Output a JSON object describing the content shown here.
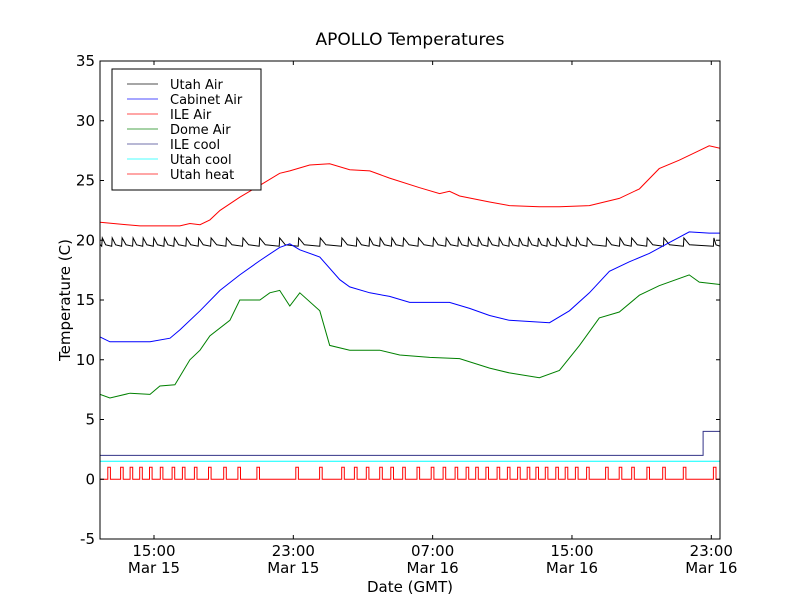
{
  "chart_data": {
    "type": "line",
    "title": "APOLLO Temperatures",
    "xlabel": "Date (GMT)",
    "ylabel": "Temperature (C)",
    "x_units": "hours since Mar 15 00:00 GMT",
    "xlim": [
      11.9,
      47.5
    ],
    "ylim": [
      -5,
      35
    ],
    "grid": false,
    "legend_position": "top-left",
    "yticks": [
      -5,
      0,
      5,
      10,
      15,
      20,
      25,
      30,
      35
    ],
    "ytick_labels": [
      "-5",
      "0",
      "5",
      "10",
      "15",
      "20",
      "25",
      "30",
      "35"
    ],
    "xticks": [
      {
        "x": 15,
        "time": "15:00",
        "date": "Mar 15"
      },
      {
        "x": 23,
        "time": "23:00",
        "date": "Mar 15"
      },
      {
        "x": 31,
        "time": "07:00",
        "date": "Mar 16"
      },
      {
        "x": 39,
        "time": "15:00",
        "date": "Mar 16"
      },
      {
        "x": 47,
        "time": "23:00",
        "date": "Mar 16"
      }
    ],
    "series": [
      {
        "name": "Utah Air",
        "color": "#000000",
        "kind": "sawtooth",
        "low": 19.5,
        "high": 20.2,
        "teeth": [
          12.0,
          12.57,
          13.14,
          13.77,
          14.35,
          14.96,
          15.57,
          16.14,
          16.83,
          17.54,
          18.25,
          19.13,
          20.08,
          21.04,
          22.19,
          23.28,
          24.52,
          25.76,
          26.62,
          27.35,
          27.96,
          28.63,
          29.3,
          30.16,
          31.02,
          31.75,
          32.45,
          33.03,
          33.6,
          34.17,
          34.8,
          35.38,
          35.95,
          36.47,
          37.04,
          37.56,
          38.09,
          38.7,
          39.24,
          39.85,
          40.96,
          41.73,
          42.4,
          43.29,
          44.25,
          45.4,
          47.12
        ]
      },
      {
        "name": "Cabinet Air",
        "color": "#0000ff",
        "kind": "line",
        "points": [
          [
            11.9,
            11.9
          ],
          [
            12.47,
            11.5
          ],
          [
            14.77,
            11.5
          ],
          [
            15.92,
            11.8
          ],
          [
            16.49,
            12.5
          ],
          [
            17.64,
            14.1
          ],
          [
            18.79,
            15.8
          ],
          [
            19.93,
            17.1
          ],
          [
            21.08,
            18.3
          ],
          [
            22.22,
            19.4
          ],
          [
            22.8,
            19.7
          ],
          [
            23.37,
            19.2
          ],
          [
            24.52,
            18.6
          ],
          [
            25.67,
            16.7
          ],
          [
            26.24,
            16.1
          ],
          [
            27.39,
            15.6
          ],
          [
            28.53,
            15.3
          ],
          [
            29.68,
            14.8
          ],
          [
            31.97,
            14.8
          ],
          [
            33.12,
            14.3
          ],
          [
            34.27,
            13.7
          ],
          [
            35.41,
            13.3
          ],
          [
            37.71,
            13.1
          ],
          [
            38.85,
            14.1
          ],
          [
            40.0,
            15.6
          ],
          [
            41.15,
            17.4
          ],
          [
            42.29,
            18.2
          ],
          [
            43.44,
            18.9
          ],
          [
            44.59,
            19.8
          ],
          [
            45.73,
            20.7
          ],
          [
            46.88,
            20.6
          ],
          [
            47.5,
            20.6
          ]
        ]
      },
      {
        "name": "ILE Air",
        "color": "#ff0000",
        "kind": "line",
        "points": [
          [
            11.9,
            21.5
          ],
          [
            14.19,
            21.2
          ],
          [
            16.49,
            21.2
          ],
          [
            17.06,
            21.4
          ],
          [
            17.64,
            21.3
          ],
          [
            18.21,
            21.7
          ],
          [
            18.79,
            22.5
          ],
          [
            19.93,
            23.6
          ],
          [
            21.08,
            24.6
          ],
          [
            22.22,
            25.6
          ],
          [
            22.8,
            25.8
          ],
          [
            23.94,
            26.3
          ],
          [
            25.09,
            26.4
          ],
          [
            26.24,
            25.9
          ],
          [
            27.39,
            25.8
          ],
          [
            28.53,
            25.2
          ],
          [
            30.25,
            24.4
          ],
          [
            31.4,
            23.9
          ],
          [
            31.97,
            24.1
          ],
          [
            32.55,
            23.7
          ],
          [
            34.27,
            23.2
          ],
          [
            35.41,
            22.9
          ],
          [
            37.13,
            22.8
          ],
          [
            38.28,
            22.8
          ],
          [
            40.0,
            22.9
          ],
          [
            41.72,
            23.5
          ],
          [
            42.87,
            24.3
          ],
          [
            44.01,
            26.0
          ],
          [
            45.16,
            26.7
          ],
          [
            46.31,
            27.5
          ],
          [
            46.88,
            27.9
          ],
          [
            47.5,
            27.7
          ]
        ]
      },
      {
        "name": "Dome Air",
        "color": "#008000",
        "kind": "line",
        "points": [
          [
            11.9,
            7.1
          ],
          [
            12.47,
            6.8
          ],
          [
            13.62,
            7.2
          ],
          [
            14.77,
            7.1
          ],
          [
            15.34,
            7.8
          ],
          [
            16.2,
            7.9
          ],
          [
            17.06,
            10.0
          ],
          [
            17.64,
            10.8
          ],
          [
            18.21,
            12.0
          ],
          [
            19.36,
            13.3
          ],
          [
            19.93,
            15.0
          ],
          [
            21.08,
            15.0
          ],
          [
            21.65,
            15.6
          ],
          [
            22.22,
            15.8
          ],
          [
            22.8,
            14.5
          ],
          [
            23.37,
            15.6
          ],
          [
            24.52,
            14.1
          ],
          [
            25.09,
            11.2
          ],
          [
            26.24,
            10.8
          ],
          [
            27.96,
            10.8
          ],
          [
            29.11,
            10.4
          ],
          [
            30.83,
            10.2
          ],
          [
            32.55,
            10.1
          ],
          [
            34.27,
            9.3
          ],
          [
            35.41,
            8.9
          ],
          [
            37.13,
            8.5
          ],
          [
            38.28,
            9.1
          ],
          [
            39.43,
            11.2
          ],
          [
            40.57,
            13.5
          ],
          [
            41.72,
            14.0
          ],
          [
            42.87,
            15.4
          ],
          [
            44.01,
            16.2
          ],
          [
            45.73,
            17.1
          ],
          [
            46.31,
            16.5
          ],
          [
            47.5,
            16.3
          ]
        ]
      },
      {
        "name": "ILE cool",
        "color": "#333388",
        "kind": "step",
        "points": [
          [
            11.9,
            2
          ],
          [
            46.53,
            2
          ],
          [
            46.53,
            4
          ],
          [
            47.5,
            4
          ]
        ]
      },
      {
        "name": "Utah cool",
        "color": "#00ffff",
        "kind": "step",
        "points": [
          [
            11.9,
            1.5
          ],
          [
            47.5,
            1.5
          ]
        ]
      },
      {
        "name": "Utah heat",
        "color": "#ff0000",
        "kind": "pulses",
        "on": 1,
        "off": 0,
        "pulse_width": 0.15,
        "pulses": [
          12.35,
          13.08,
          13.63,
          14.18,
          14.74,
          15.36,
          16.04,
          16.63,
          17.32,
          18.13,
          19.0,
          19.82,
          20.91,
          23.14,
          24.51,
          25.78,
          26.51,
          27.19,
          27.96,
          28.6,
          29.28,
          30.1,
          30.92,
          31.6,
          32.29,
          32.92,
          33.47,
          34.06,
          34.7,
          35.29,
          35.88,
          36.43,
          36.93,
          37.47,
          38.07,
          38.61,
          39.2,
          39.84,
          40.93,
          41.71,
          42.43,
          43.3,
          44.21,
          45.39,
          47.12
        ]
      }
    ]
  }
}
